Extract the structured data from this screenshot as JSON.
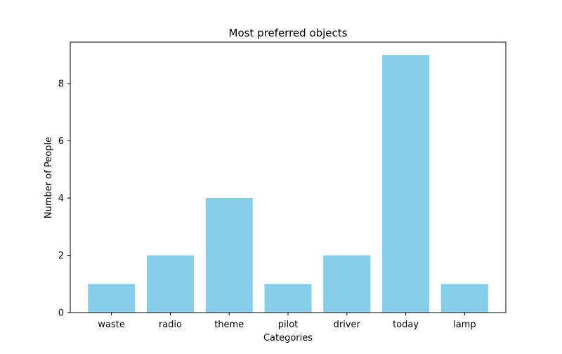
{
  "chart_data": {
    "type": "bar",
    "title": "Most preferred objects",
    "xlabel": "Categories",
    "ylabel": "Number of People",
    "categories": [
      "waste",
      "radio",
      "theme",
      "pilot",
      "driver",
      "today",
      "lamp"
    ],
    "values": [
      1,
      2,
      4,
      1,
      2,
      9,
      1
    ],
    "ylim": [
      0,
      9.45
    ],
    "yticks": [
      0,
      2,
      4,
      6,
      8
    ],
    "bar_color": "#87ceeb",
    "grid": false,
    "legend": null
  }
}
